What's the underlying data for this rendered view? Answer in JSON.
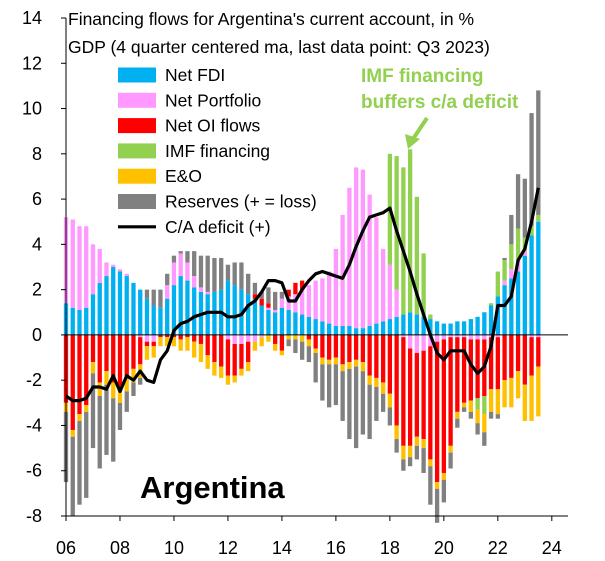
{
  "chart_data": {
    "type": "bar",
    "title": "Financing flows for Argentina's current account, in % GDP (4 quarter centered ma, last data point: Q3 2023)",
    "title_lines": [
      "Financing flows for Argentina's current account, in %",
      "GDP (4 quarter centered ma, last data point: Q3  2023)"
    ],
    "panel_label": "Argentina",
    "annotation": {
      "lines": [
        "IMF financing",
        "buffers c/a deficit"
      ],
      "color": "#92D050"
    },
    "stacked": true,
    "grid": false,
    "legend_position": "top-left",
    "ylim": [
      -8,
      14
    ],
    "yticks": [
      -8,
      -6,
      -4,
      -2,
      0,
      2,
      4,
      6,
      8,
      10,
      12,
      14
    ],
    "xlim": [
      2006,
      2024.6
    ],
    "xticks": [
      6,
      8,
      10,
      12,
      14,
      16,
      18,
      20,
      22,
      24
    ],
    "xtick_labels": [
      "06",
      "08",
      "10",
      "12",
      "14",
      "16",
      "18",
      "20",
      "22",
      "24"
    ],
    "x": [
      2006.0,
      2006.25,
      2006.5,
      2006.75,
      2007.0,
      2007.25,
      2007.5,
      2007.75,
      2008.0,
      2008.25,
      2008.5,
      2008.75,
      2009.0,
      2009.25,
      2009.5,
      2009.75,
      2010.0,
      2010.25,
      2010.5,
      2010.75,
      2011.0,
      2011.25,
      2011.5,
      2011.75,
      2012.0,
      2012.25,
      2012.5,
      2012.75,
      2013.0,
      2013.25,
      2013.5,
      2013.75,
      2014.0,
      2014.25,
      2014.5,
      2014.75,
      2015.0,
      2015.25,
      2015.5,
      2015.75,
      2016.0,
      2016.25,
      2016.5,
      2016.75,
      2017.0,
      2017.25,
      2017.5,
      2017.75,
      2018.0,
      2018.25,
      2018.5,
      2018.75,
      2019.0,
      2019.25,
      2019.5,
      2019.75,
      2020.0,
      2020.25,
      2020.5,
      2020.75,
      2021.0,
      2021.25,
      2021.5,
      2021.75,
      2022.0,
      2022.25,
      2022.5,
      2022.75,
      2023.0,
      2023.25,
      2023.5
    ],
    "series": [
      {
        "name": "Net FDI",
        "color": "#00B0F0",
        "values": [
          1.4,
          1.2,
          1.1,
          1.2,
          1.8,
          2.3,
          2.6,
          3.0,
          2.8,
          2.6,
          2.3,
          2.0,
          1.6,
          1.3,
          1.2,
          1.6,
          2.2,
          2.6,
          2.4,
          2.1,
          1.9,
          1.8,
          1.9,
          2.0,
          2.4,
          2.2,
          2.0,
          1.8,
          1.6,
          1.3,
          1.1,
          1.0,
          1.2,
          1.1,
          1.0,
          0.9,
          0.8,
          0.7,
          0.6,
          0.5,
          0.4,
          0.4,
          0.4,
          0.3,
          0.3,
          0.4,
          0.5,
          0.6,
          0.7,
          0.8,
          0.9,
          1.0,
          0.9,
          0.8,
          0.7,
          0.6,
          0.5,
          0.5,
          0.6,
          0.6,
          0.7,
          0.8,
          1.0,
          1.3,
          1.7,
          2.2,
          2.5,
          2.8,
          3.5,
          4.4,
          5.0
        ]
      },
      {
        "name": "Net Portfolio",
        "color": "#FF99FF",
        "values": [
          3.8,
          3.9,
          3.7,
          3.6,
          2.2,
          1.5,
          0.6,
          0.1,
          0.1,
          0.1,
          0.0,
          -0.1,
          -0.3,
          -0.3,
          0.0,
          0.6,
          1.0,
          1.0,
          0.8,
          0.5,
          0.2,
          0.1,
          0.0,
          0.0,
          -0.2,
          -0.4,
          -0.4,
          -0.3,
          -0.3,
          -0.1,
          0.1,
          0.1,
          0.4,
          0.6,
          0.8,
          1.1,
          1.4,
          1.7,
          1.9,
          2.3,
          3.4,
          4.9,
          6.1,
          7.1,
          7.0,
          5.8,
          4.7,
          3.2,
          2.4,
          1.2,
          -0.1,
          -0.6,
          -0.8,
          -0.7,
          -0.5,
          -0.3,
          -0.2,
          -0.1,
          -0.1,
          -0.1,
          -0.2,
          -0.2,
          -0.2,
          -0.1,
          -0.1,
          0.2,
          0.4,
          0.5,
          0.2,
          -0.1,
          -0.1
        ]
      },
      {
        "name": "Net OI flows",
        "color": "#FF0000",
        "values": [
          -3.0,
          -4.2,
          -3.5,
          -3.1,
          -1.2,
          -2.1,
          -1.6,
          -2.1,
          -2.3,
          -1.9,
          -1.5,
          -1.2,
          -0.2,
          -0.2,
          -0.1,
          -0.1,
          -0.1,
          -0.2,
          -0.1,
          -0.3,
          -0.4,
          -0.9,
          -1.2,
          -1.4,
          -1.6,
          -1.4,
          -1.1,
          -0.9,
          0.2,
          0.3,
          0.2,
          -0.4,
          -0.7,
          0.3,
          0.5,
          0.4,
          -0.2,
          -0.6,
          -1.0,
          -1.1,
          -1.0,
          -1.3,
          -1.2,
          -1.1,
          -1.2,
          -1.8,
          -1.9,
          -2.1,
          -2.6,
          -4.0,
          -4.8,
          -4.3,
          -3.7,
          -3.9,
          -5.0,
          -6.2,
          -5.9,
          -4.8,
          -3.3,
          -2.9,
          -2.7,
          -2.6,
          -2.5,
          -2.3,
          -2.3,
          -2.0,
          -1.9,
          -1.6,
          -2.2,
          -1.7,
          -1.3
        ]
      },
      {
        "name": "IMF financing",
        "color": "#92D050",
        "values": [
          0,
          0,
          0,
          0,
          0,
          0,
          0,
          0,
          0,
          0,
          0,
          0,
          0,
          0,
          0,
          0,
          0,
          0,
          0,
          0,
          0,
          0,
          0,
          0,
          0,
          0,
          0,
          0,
          0,
          0,
          0,
          0,
          0,
          0,
          0,
          0,
          0,
          0,
          0,
          0,
          0,
          0,
          0,
          0,
          0,
          0,
          0,
          0,
          4.9,
          5.9,
          6.5,
          7.2,
          5.2,
          2.8,
          0.2,
          0,
          0,
          0,
          0,
          0,
          0,
          -0.5,
          -0.8,
          0.1,
          1.1,
          0.9,
          1.1,
          1.4,
          0.6,
          0.4,
          0.3
        ]
      },
      {
        "name": "E&O",
        "color": "#FFC000",
        "values": [
          -0.4,
          -0.3,
          -0.3,
          -0.3,
          -0.5,
          -0.6,
          -0.6,
          -0.7,
          -0.7,
          -0.6,
          -0.6,
          -0.6,
          -0.6,
          -0.5,
          -0.4,
          -0.4,
          -0.4,
          -0.5,
          -0.6,
          -0.7,
          -0.8,
          -0.6,
          -0.6,
          -0.5,
          -0.4,
          -0.3,
          -0.3,
          -0.4,
          -0.4,
          -0.4,
          -0.3,
          -0.3,
          -0.2,
          -0.2,
          -0.2,
          -0.3,
          -0.3,
          -0.2,
          -0.3,
          -0.2,
          -0.3,
          -0.3,
          -0.3,
          -0.3,
          -0.4,
          -0.4,
          -0.4,
          -0.5,
          -0.6,
          -0.6,
          -0.6,
          -0.5,
          -0.4,
          -0.4,
          -0.3,
          -0.3,
          -0.3,
          -0.3,
          -0.3,
          -0.2,
          -0.5,
          -0.6,
          -0.8,
          -1.0,
          -1.1,
          -1.2,
          -1.3,
          -1.2,
          -1.6,
          -2.0,
          -2.2
        ]
      },
      {
        "name": "Reserves (+ = loss)",
        "color": "#808080",
        "values": [
          -3.1,
          -3.5,
          -3.7,
          -3.8,
          -3.3,
          -3.2,
          -3.1,
          -2.8,
          -1.2,
          -0.9,
          -0.6,
          -0.3,
          0.4,
          0.7,
          0.8,
          0.5,
          0.3,
          0.1,
          0.5,
          1.1,
          1.4,
          1.6,
          1.5,
          1.4,
          0.7,
          1.0,
          1.2,
          0.9,
          0.5,
          0.3,
          0.7,
          0.8,
          0.3,
          -0.3,
          -0.6,
          -0.8,
          -0.7,
          -1.3,
          -1.6,
          -1.9,
          -1.8,
          -2.2,
          -3.1,
          -3.6,
          -2.8,
          -2.4,
          -1.5,
          -0.8,
          -0.8,
          -0.6,
          -0.5,
          -0.4,
          -0.6,
          -1.1,
          -1.7,
          -1.5,
          -1.0,
          -0.7,
          -0.4,
          -0.2,
          -0.3,
          -0.5,
          -0.6,
          -0.3,
          -0.2,
          0.1,
          1.3,
          2.4,
          2.6,
          5.0,
          5.5
        ]
      },
      {
        "name": "C/A deficit (+)",
        "color": "#000000",
        "type": "line",
        "values": [
          -2.7,
          -2.9,
          -2.9,
          -2.8,
          -2.3,
          -2.3,
          -2.4,
          -1.8,
          -2.5,
          -1.8,
          -2.0,
          -1.6,
          -2.0,
          -2.1,
          -1.1,
          -0.7,
          0.2,
          0.5,
          0.6,
          0.8,
          0.9,
          1.0,
          1.0,
          1.0,
          0.8,
          0.8,
          0.9,
          1.3,
          1.5,
          1.9,
          2.4,
          2.4,
          2.3,
          1.5,
          1.5,
          2.0,
          2.4,
          2.7,
          2.8,
          2.7,
          2.6,
          2.5,
          3.1,
          3.9,
          4.6,
          5.2,
          5.3,
          5.4,
          5.6,
          4.6,
          3.7,
          2.8,
          1.8,
          0.9,
          0.0,
          -0.8,
          -1.1,
          -0.7,
          -0.7,
          -0.7,
          -1.3,
          -1.7,
          -1.4,
          -0.5,
          1.3,
          1.3,
          1.7,
          3.3,
          3.8,
          5.0,
          6.5
        ]
      }
    ]
  }
}
